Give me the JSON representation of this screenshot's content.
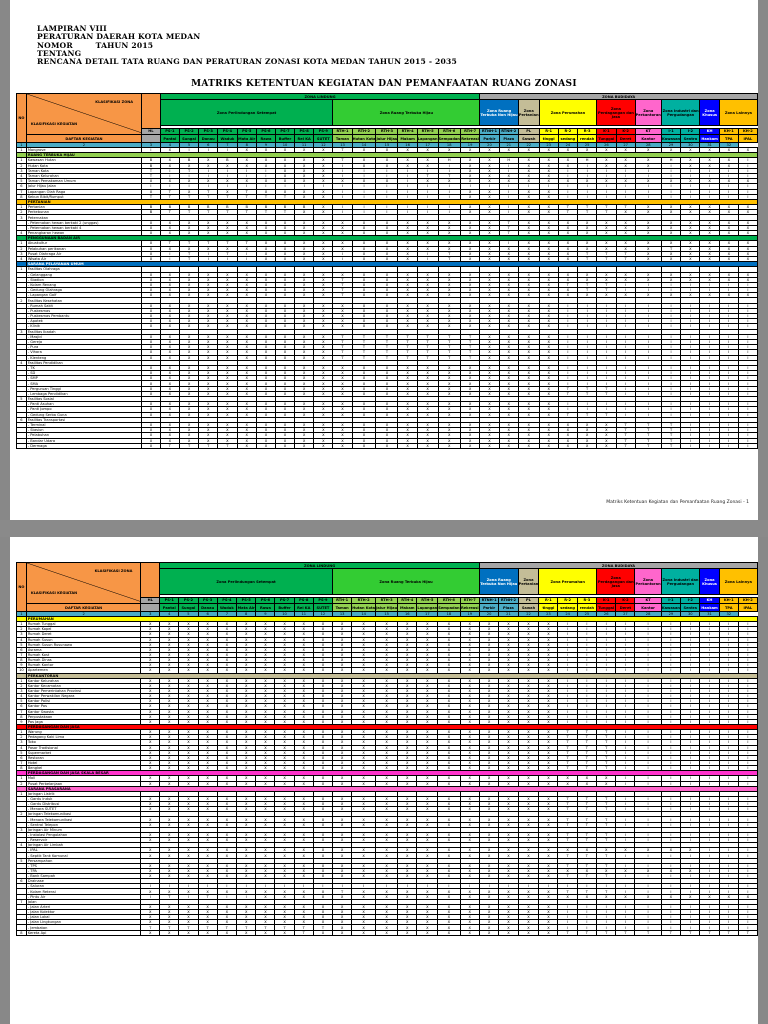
{
  "document": {
    "header_lines": [
      "LAMPIRAN VIII",
      "PERATURAN DAERAH KOTA MEDAN",
      "NOMOR        TAHUN 2015",
      "TENTANG",
      "RENCANA DETAIL TATA RUANG DAN PERATURAN ZONASI KOTA MEDAN TAHUN 2015 - 2035"
    ],
    "title": "MATRIKS KETENTUAN KEGIATAN DAN PEMANFAATAN RUANG ZONASI",
    "footer": "Matriks Ketentuan Kegiatan dan Pemanfaatan Ruang Zonasi - 1"
  },
  "table_header": {
    "no_label": "NO",
    "klasifikasi_zona": "KLASIFIKASI ZONA",
    "klasifikasi_kegiatan": "KLASIFIKASI KEGIATAN",
    "daftar_kegiatan": "DAFTAR KEGIATAN",
    "zona_lindung": "ZONA LINDUNG",
    "zona_budidaya": "ZONA BUDIDAYA",
    "group_labels": [
      {
        "label": "Zona Perlindungan Setempat",
        "cls": "c-dg"
      },
      {
        "label": "Zona Ruang Terbuka Hijau",
        "cls": "c-br"
      },
      {
        "label": "Zona Ruang Terbuka Non Hijau",
        "cls": "c-bl"
      },
      {
        "label": "Zona Pertanian",
        "cls": "c-ol"
      },
      {
        "label": "Zona Perumahan",
        "cls": "c-yl"
      },
      {
        "label": "Zona Perdagangan dan Jasa",
        "cls": "c-rd"
      },
      {
        "label": "Zona Perkantoran",
        "cls": "c-pk"
      },
      {
        "label": "Zona Industri dan Pergudangan",
        "cls": "c-tl"
      },
      {
        "label": "Zona Khusus",
        "cls": "c-bb"
      },
      {
        "label": "Zona Lainnya",
        "cls": "c-yo"
      }
    ],
    "codes": [
      "HL",
      "PS-1",
      "PS-2",
      "PS-3",
      "PS-4",
      "PS-5",
      "PS-6",
      "PS-7",
      "PS-8",
      "PS-9",
      "RTH-1",
      "RTH-2",
      "RTH-3",
      "RTH-4",
      "RTH-5",
      "RTH-6",
      "RTH-7",
      "RTNH-1",
      "RTNH-2",
      "PL",
      "R-1",
      "R-2",
      "R-3",
      "K-1",
      "K-2",
      "KT",
      "I-1",
      "I-2",
      "KH",
      "KH-1",
      "KH-2"
    ],
    "subnames": [
      "",
      "Pantai",
      "Sungai",
      "Danau",
      "Waduk",
      "Mata Air",
      "Rawa",
      "Buffer",
      "Rel KA",
      "SUTET",
      "Taman",
      "Hutan Kota",
      "Jalur Hijau",
      "Makam",
      "Lapangan",
      "Sempadan",
      "Rekreasi",
      "Parkir",
      "Plaza",
      "Sawah",
      "tinggi",
      "sedang",
      "rendah",
      "Tunggal",
      "Deret",
      "Kantor",
      "Kawasan",
      "Sentra",
      "Hankam",
      "TPA",
      "IPAL"
    ],
    "numbers": [
      "1",
      "2",
      "3",
      "4",
      "5",
      "6",
      "7",
      "8",
      "9",
      "10",
      "11",
      "12",
      "13",
      "14",
      "15",
      "16",
      "17",
      "18",
      "19",
      "20",
      "21",
      "22",
      "23",
      "24",
      "25",
      "26",
      "27",
      "28",
      "29",
      "30",
      "31",
      "32"
    ]
  },
  "page1_rows": [
    {
      "no": "1",
      "act": "Mangrove",
      "v": "IXIIIXXXXXTXXXXXXXXXXXXXXXXXXXX",
      "s": "n"
    },
    {
      "no": "",
      "act": "RUANG TERBUKA HIJAU",
      "v": "",
      "s": "lg"
    },
    {
      "no": "1",
      "act": "Kawasan Hutan",
      "v": "BXBXBXXXXXTXXXXHXXHXXXHXXXHXXXI",
      "s": "n"
    },
    {
      "no": "2",
      "act": "Hutan Kota",
      "v": "BXXXXXXXXXIXXXXIXXIXXXIXXXIXXXI",
      "s": "n"
    },
    {
      "no": "3",
      "act": "Taman Kota",
      "v": "TITIIIIXXXIIIIIIXXIXXIIIIIIIIII",
      "s": "n"
    },
    {
      "no": "4",
      "act": "Taman Kelurahan",
      "v": "TIIIIIIXXXIIIITTXXXXXIIIIIIIIII",
      "s": "n"
    },
    {
      "no": "5",
      "act": "Taman Pemakaman Umum",
      "v": "XXXXXXXXXXXXXIXXXXXXXXXXXXXXXXX",
      "s": "n"
    },
    {
      "no": "6",
      "act": "Jalur Hijau Jalan",
      "v": "IIIIIIIIIIIIIIIIIIIIIIIIIIIIIII",
      "s": "n"
    },
    {
      "no": "7",
      "act": "Lapangan Olah Raga",
      "v": "XTXTXTXXXXIIIIIIXXIXXIIIIIIIIII",
      "s": "n"
    },
    {
      "no": "8",
      "act": "Kebun Bibit/Rumput",
      "v": "TTTTTTTTXXIIIIIIXXIXXIIIIIIIIII",
      "s": "n"
    },
    {
      "no": "",
      "act": "PERTANIAN",
      "v": "",
      "s": "yo"
    },
    {
      "no": "1",
      "act": "Pertanian",
      "v": "BBBBBBBBBXIIIIIIXXIXXTTTTXXXXXX",
      "s": "n"
    },
    {
      "no": "2",
      "act": "Perkebunan",
      "v": "BTTTTTTTXXIIIIIIXXIXXTTTXXXXXXX",
      "s": "n"
    },
    {
      "no": "3",
      "act": "Peternakan",
      "v": "",
      "s": "n"
    },
    {
      "no": "",
      "act": "- Peternakan hewan berkaki 2 (unggas)",
      "v": "XXXXXXXXXXXXXXXXXXTXXXXXXXXXXXX",
      "s": "n"
    },
    {
      "no": "",
      "act": "- Peternakan hewan berkaki 4",
      "v": "XXXXXXXXXXXXXXXXXXTXXXXXXXXXXXX",
      "s": "n"
    },
    {
      "no": "4",
      "act": "Penangkaran hewan",
      "v": "XXXXXXXXXXXXXXXXXXTXXXXXXXXXXXX",
      "s": "n"
    },
    {
      "no": "",
      "act": "PENGGUNAAN BADAN AIR",
      "v": "",
      "s": "dg"
    },
    {
      "no": "1",
      "act": "Akuakultur",
      "v": "XTTTTTXXXXXXXXXXXXIXXXXXXXXXXXX",
      "s": "n"
    },
    {
      "no": "2",
      "act": "Pelabuhan perikanan",
      "v": "XXXXXXXXXXXXXXXXXXXXXXXXXXTXXXX",
      "s": "n"
    },
    {
      "no": "3",
      "act": "Pusat Olahraga Air",
      "v": "XITITIXXXXIXXXITXXXXXXTTTXXXXXX",
      "s": "n"
    },
    {
      "no": "4",
      "act": "Wisata Air",
      "v": "XITIIIXXXXIXXXITXXXXXXTTTXXXXXX",
      "s": "n"
    },
    {
      "no": "",
      "act": "SARANA PELAYANAN UMUM",
      "v": "",
      "s": "bl"
    },
    {
      "no": "1",
      "act": "Fasilitas Olahraga",
      "v": "",
      "s": "n"
    },
    {
      "no": "",
      "act": "- Gelanggang",
      "v": "XXXXXXXXXXXXXXXXXXXXXXXXXXXXXXX",
      "s": "n"
    },
    {
      "no": "",
      "act": "- Stadion",
      "v": "XXXXXXXXXXTXXXXXXXXXXXXXXXXXXXX",
      "s": "n"
    },
    {
      "no": "",
      "act": "- Kolam Renang",
      "v": "XXXXXXXXXXTXXXXXXXXXXTTTIIIIIII",
      "s": "n"
    },
    {
      "no": "",
      "act": "- Gedung Olahraga",
      "v": "XXXXXXXXXXTXXXXXXXXXXXTTIIIIIII",
      "s": "n"
    },
    {
      "no": "",
      "act": "- Lapangan Golf",
      "v": "XXXXXXXXXXTXXXXXXXXXXXXXXXXXXXX",
      "s": "n"
    },
    {
      "no": "2",
      "act": "Fasilitas Kesehatan",
      "v": "",
      "s": "n"
    },
    {
      "no": "",
      "act": "- Rumah Sakit",
      "v": "XXXXXXXXXXXXXXXXXXXXXIIIIIIIIII",
      "s": "n"
    },
    {
      "no": "",
      "act": "- Puskesmas",
      "v": "XXXXXXXXXXXXXXXXXXXXXIIIIIIIIII",
      "s": "n"
    },
    {
      "no": "",
      "act": "- Puskesmas Pembantu",
      "v": "XXXXXXXXXXXXXXXXXXXXXIIIIIIIIII",
      "s": "n"
    },
    {
      "no": "",
      "act": "- Apotek",
      "v": "XXXXXXXXXXXXXXXXXXXXXIIIIIIIIII",
      "s": "n"
    },
    {
      "no": "",
      "act": "- Klinik",
      "v": "XXXXXXXXXXXXXXXXXXXXXIIIIIIIIII",
      "s": "n"
    },
    {
      "no": "3",
      "act": "Fasilitas Ibadah",
      "v": "",
      "s": "n"
    },
    {
      "no": "",
      "act": "- Masjid",
      "v": "XXXXXXXXXXTTTTTTTXXXXIIIIIIIIII",
      "s": "n"
    },
    {
      "no": "",
      "act": "- Gereja",
      "v": "XXXXXXXXXXTTTTTTTXXXXIIIIIIIIII",
      "s": "n"
    },
    {
      "no": "",
      "act": "- Pura",
      "v": "XXXXXXXXXXTTTTTTTXXXXIIIIIIIIII",
      "s": "n"
    },
    {
      "no": "",
      "act": "- Vihara",
      "v": "XXXXXXXXXXTTTTTTTXXXXIIIIIIIIII",
      "s": "n"
    },
    {
      "no": "",
      "act": "- Klenteng",
      "v": "XXXXXXXXXXTTTTTTTXXXXIIIIIIIIII",
      "s": "n"
    },
    {
      "no": "4",
      "act": "Fasilitas Pendidikan",
      "v": "",
      "s": "n"
    },
    {
      "no": "",
      "act": "- TK",
      "v": "XXXXXXXXXXXXXXXXXXXXXIIIIIIIIII",
      "s": "n"
    },
    {
      "no": "",
      "act": "- SD",
      "v": "XXXXXXXXXXXXXXXXXXXXXIIIIIIIIII",
      "s": "n"
    },
    {
      "no": "",
      "act": "- SMP",
      "v": "XXXXXXXXXXXXXXXXXXXXXIIIIIIIIII",
      "s": "n"
    },
    {
      "no": "",
      "act": "- SMA",
      "v": "XXXXXXXXXXXXXXXXXXXXXIIIIIIIIII",
      "s": "n"
    },
    {
      "no": "",
      "act": "- Perguruan Tinggi",
      "v": "XXXXXXXXXXXXXXXXXXXXXTTTIIIIIII",
      "s": "n"
    },
    {
      "no": "",
      "act": "- Lembaga Pendidikan",
      "v": "XXXXXXXXXXXXXXXXXXXXXTTTIIIIIII",
      "s": "n"
    },
    {
      "no": "5",
      "act": "Fasilitas Sosial",
      "v": "",
      "s": "n"
    },
    {
      "no": "",
      "act": "- Panti Asuhan",
      "v": "XXXXXXXXXXXXXXXXXXXXXIIIIIIIIII",
      "s": "n"
    },
    {
      "no": "",
      "act": "- Panti Jompo",
      "v": "XXXXXXXXXXXXXXXXXXXXXIIIIIIIIII",
      "s": "n"
    },
    {
      "no": "",
      "act": "- Gedung Serba Guna",
      "v": "XXXXXXXXXXXXXXXXXXXXXTTTIIIIIII",
      "s": "n"
    },
    {
      "no": "6",
      "act": "Fasilitas Transportasi",
      "v": "",
      "s": "n"
    },
    {
      "no": "",
      "act": "- Terminal",
      "v": "XXXXXXXXXXXXXXXXXXXXXXXXTTTIIII",
      "s": "n"
    },
    {
      "no": "",
      "act": "- Stasiun",
      "v": "XXXXXXXXXXXXXXXXXXXXXXXXTTTIIII",
      "s": "n"
    },
    {
      "no": "",
      "act": "- Pelabuhan",
      "v": "XXXXXXXXXXXXXXXXXXXXXXXXTTTIIII",
      "s": "n"
    },
    {
      "no": "",
      "act": "- Bandar Udara",
      "v": "XXXXXXXXXXXXXXXXXXXXXXXXTTTIIII",
      "s": "n"
    },
    {
      "no": "",
      "act": "- Dermaga",
      "v": "XTTTTXXXXXXXXXXXXXXXXXXXTTTIIII",
      "s": "n"
    }
  ],
  "page2_rows": [
    {
      "no": "",
      "act": "PERUMAHAN",
      "v": "",
      "s": "yl"
    },
    {
      "no": "1",
      "act": "Rumah Tunggal",
      "v": "XXXXXXXXXXXXXXXXXXXXXIIIIIIIIII",
      "s": "n"
    },
    {
      "no": "2",
      "act": "Rumah Kopel",
      "v": "XXXXXXXXXXXXXXXXXXXXXIIIIIIIIII",
      "s": "n"
    },
    {
      "no": "3",
      "act": "Rumah Deret",
      "v": "XXXXXXXXXXXXXXXXXXXXXIIIIIIIIII",
      "s": "n"
    },
    {
      "no": "4",
      "act": "Rumah Susun",
      "v": "XXXXXXXXXXXXXXXXXXXXXIIIIIIIIII",
      "s": "n"
    },
    {
      "no": "5",
      "act": "Rumah Susun Rusunawa",
      "v": "XXXXXXXXXXXXXXXXXXXXXIIIIIIIIII",
      "s": "n"
    },
    {
      "no": "6",
      "act": "Asrama",
      "v": "XXXXXXXXXXXXXXXXXXXXXIIIIIIIIII",
      "s": "n"
    },
    {
      "no": "7",
      "act": "Rumah Kost",
      "v": "XXXXXXXXXXXXXXXXXXXXXIIIIIIIIII",
      "s": "n"
    },
    {
      "no": "8",
      "act": "Rumah Dinas",
      "v": "XXXXXXXXXXXXXXXXXXXXXIIIIIIIIII",
      "s": "n"
    },
    {
      "no": "9",
      "act": "Rumah Kantor",
      "v": "XXXXXXXXXXXXXXXXXXXXXIIIIIIIIII",
      "s": "n"
    },
    {
      "no": "10",
      "act": "Apartemen",
      "v": "XXXXXXXXXXXXXXXXXXXXXIIIIIIIIII",
      "s": "n"
    },
    {
      "no": "",
      "act": "PERKANTORAN",
      "v": "",
      "s": "ol"
    },
    {
      "no": "1",
      "act": "Kantor Kelurahan",
      "v": "XXXXXXXXXXXXXXXXXXXXXIIIIIIIIII",
      "s": "n"
    },
    {
      "no": "2",
      "act": "Kantor Kecamatan",
      "v": "XXXXXXXXXXXXXXXXXXXXXIIIIIIIIII",
      "s": "n"
    },
    {
      "no": "3",
      "act": "Kantor Pemerintahan Provinsi",
      "v": "XXXXXXXXXXXXXXXXXXXXXIIIIIIIIII",
      "s": "n"
    },
    {
      "no": "4",
      "act": "Kantor Perwakilan Negara",
      "v": "XXXXXXXXXXXXXXXXXXXXXIIIIIIIIII",
      "s": "n"
    },
    {
      "no": "5",
      "act": "Kantor Polisi",
      "v": "XXXXXXXXXXXXXXXXXXXXXIIIIIIIIII",
      "s": "n"
    },
    {
      "no": "6",
      "act": "Kantor Pos",
      "v": "XXXXXXXXXXXXXXXXXXXXXIIIIIIIIII",
      "s": "n"
    },
    {
      "no": "7",
      "act": "Kantor Swasta",
      "v": "XXXXXXXXXXXXXXXXXXXXXIIIIIIIIII",
      "s": "n"
    },
    {
      "no": "8",
      "act": "Perpustakaan",
      "v": "XXXXXXXXXXXXXXXXXXXXXIIIIIIIIII",
      "s": "n"
    },
    {
      "no": "9",
      "act": "Pos Jaga",
      "v": "XXXXXXXXXXXXXXXXXXXXXIIIIIIIIII",
      "s": "n"
    },
    {
      "no": "",
      "act": "PERDAGANGAN DAN JASA",
      "v": "",
      "s": "rd"
    },
    {
      "no": "1",
      "act": "Warung",
      "v": "XXXXXXXXXXXXXXXXXXXXXTTTIIIIIII",
      "s": "n"
    },
    {
      "no": "2",
      "act": "Pedagang Kaki Lima",
      "v": "XXXXXXXXXXXXXXXXXXXXXTTTIIIIIII",
      "s": "n"
    },
    {
      "no": "3",
      "act": "Toko",
      "v": "XXXXXXXXXXXXXXXXXXXXXTTTIIIIIII",
      "s": "n"
    },
    {
      "no": "4",
      "act": "Pasar Tradisional",
      "v": "XXXXXXXXXXXXXXXXXXXXXTTTIIIIIII",
      "s": "n"
    },
    {
      "no": "5",
      "act": "Supermarket",
      "v": "XXXXXXXXXXXXXXXXXXXXXTTTIIIIIII",
      "s": "n"
    },
    {
      "no": "6",
      "act": "Restoran",
      "v": "XXXXXXXXXXXXXXXXXXXXXTTTIIIIIII",
      "s": "n"
    },
    {
      "no": "7",
      "act": "Hotel",
      "v": "XXXXXXXXXXXXXXXXXXXXXTTTIIIIIII",
      "s": "n"
    },
    {
      "no": "8",
      "act": "Bengkel",
      "v": "XXXXXXXXXXXXXXXXXXXXXTTTIIIIIII",
      "s": "n"
    },
    {
      "no": "",
      "act": "PERDAGANGAN DAN JASA SKALA BESAR",
      "v": "",
      "s": "mg"
    },
    {
      "no": "1",
      "act": "Mall",
      "v": "XXXXXXXXXXXXXXXXXXXXXXXXIIIIIII",
      "s": "n"
    },
    {
      "no": "2",
      "act": "Pusat Perbelanjaan",
      "v": "XXXXXXXXXXXXXXXXXXXXXXXXIIIIIII",
      "s": "n"
    },
    {
      "no": "",
      "act": "SARANA PRASARANA",
      "v": "",
      "s": "pk"
    },
    {
      "no": "1",
      "act": "Jaringan Listrik",
      "v": "",
      "s": "n"
    },
    {
      "no": "",
      "act": "- Gardu Induk",
      "v": "XXXXXXXXXXXXXXXXXXXXXTTTIIIIIII",
      "s": "n"
    },
    {
      "no": "",
      "act": "- Gardu Distribusi",
      "v": "XXXXXXXXXXXXXXXXXXXXXTTTIIIIIII",
      "s": "n"
    },
    {
      "no": "",
      "act": "- Menara SUTET",
      "v": "XXXXXXXXXXXXXXXXXXXXXTTTIIIIIII",
      "s": "n"
    },
    {
      "no": "2",
      "act": "Jaringan Telekomunikasi",
      "v": "",
      "s": "n"
    },
    {
      "no": "",
      "act": "- Menara Telekomunikasi",
      "v": "XXXXXXXXXXXXXXXXXXXXXTTTIIIIIII",
      "s": "n"
    },
    {
      "no": "",
      "act": "- Sentral Telepon",
      "v": "XXXXXXXXXXXXXXXXXXXXXTTTIIIIIII",
      "s": "n"
    },
    {
      "no": "3",
      "act": "Jaringan Air Minum",
      "v": "",
      "s": "n"
    },
    {
      "no": "",
      "act": "- Instalasi Pengolahan",
      "v": "XXXXXXXXXXXXXXXXXXXXXTTTIIIIIII",
      "s": "n"
    },
    {
      "no": "",
      "act": "- Reservoir",
      "v": "XXXXXXXXXXXXXXXXXXXXXTTTIIIIIII",
      "s": "n"
    },
    {
      "no": "4",
      "act": "Jaringan Air Limbah",
      "v": "",
      "s": "n"
    },
    {
      "no": "",
      "act": "- IPAL",
      "v": "XXXXXXXXXXXXXXXXXXXXXXXXXXXXIII",
      "s": "n"
    },
    {
      "no": "",
      "act": "- Septik Tank Komunal",
      "v": "XXXXXXXXXXXXXXXXXXXXXTTTIIIIIII",
      "s": "n"
    },
    {
      "no": "5",
      "act": "Persampahan",
      "v": "",
      "s": "n"
    },
    {
      "no": "",
      "act": "- TPS",
      "v": "XXXXXXXXXXXXXXXXXXXXXTTTIIIIIII",
      "s": "n"
    },
    {
      "no": "",
      "act": "- TPA",
      "v": "XXXXXXXXXXXXXXXXXXXXXXXXXXXXIII",
      "s": "n"
    },
    {
      "no": "",
      "act": "- Bank Sampah",
      "v": "XXXXXXXXXXXXXXXXXXXXXTTTIIIIIII",
      "s": "n"
    },
    {
      "no": "6",
      "act": "Drainase",
      "v": "",
      "s": "n"
    },
    {
      "no": "",
      "act": "- Saluran",
      "v": "IIIIIIIIIIIIIIIIIIIIIIIIIIIIIII",
      "s": "n"
    },
    {
      "no": "",
      "act": "- Kolam Retensi",
      "v": "XXXXXXXXXXTXXXXXXXXXXTTTIIIIIII",
      "s": "n"
    },
    {
      "no": "",
      "act": "- Pintu Air",
      "v": "ITITIIXXXXXXXXXXXXXXXXXXXXXXXXX",
      "s": "n"
    },
    {
      "no": "7",
      "act": "Jalan",
      "v": "",
      "s": "n"
    },
    {
      "no": "",
      "act": "- Jalan Arteri",
      "v": "XXXXXXXXXXXXXXXXXXXXXIIIIIIIIII",
      "s": "n"
    },
    {
      "no": "",
      "act": "- Jalan Kolektor",
      "v": "XXXXXXXXXXXXXXXXXXXXXIIIIIIIIII",
      "s": "n"
    },
    {
      "no": "",
      "act": "- Jalan Lokal",
      "v": "XXXXXXXXXXXXXXXXXXXXXIIIIIIIIII",
      "s": "n"
    },
    {
      "no": "",
      "act": "- Jalan Lingkungan",
      "v": "XXXXXXXXXXXXXXXXXXXXXIIIIIIIIII",
      "s": "n"
    },
    {
      "no": "",
      "act": "- Jembatan",
      "v": "TTTTTTTTTTXXXXXXXXXXXIIIIIIIIII",
      "s": "n"
    },
    {
      "no": "8",
      "act": "Kereta Api",
      "v": "XXXXXXXXTXXXXXXXXXXXXTTTTTTTTTT",
      "s": "n"
    }
  ],
  "page2_footer_visible": false
}
